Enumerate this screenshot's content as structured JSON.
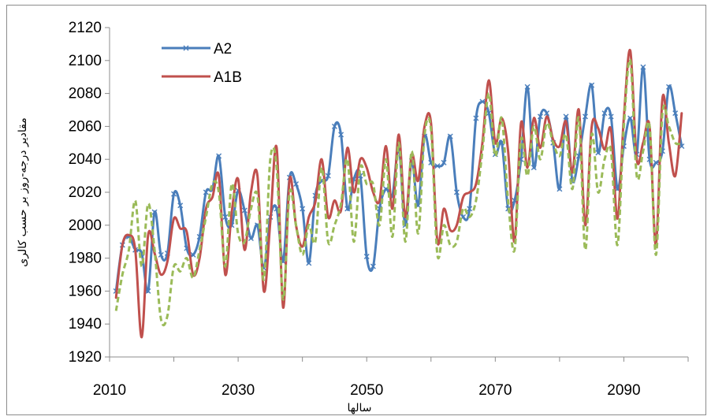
{
  "chart_data": {
    "type": "line",
    "title": "",
    "xlabel": "سالها",
    "ylabel": "مقادیر درجه-روز بر حسب کالری",
    "xlim": [
      2010,
      2100
    ],
    "ylim": [
      1920,
      2120
    ],
    "x_ticks": [
      "2010",
      "2030",
      "2050",
      "2070",
      "2090"
    ],
    "y_ticks": [
      "1920",
      "1940",
      "1960",
      "1980",
      "2000",
      "2020",
      "2040",
      "2060",
      "2080",
      "2100",
      "2120"
    ],
    "legend_position": "top-left",
    "grid": false,
    "x": [
      2011,
      2012,
      2013,
      2014,
      2015,
      2016,
      2017,
      2018,
      2019,
      2020,
      2021,
      2022,
      2023,
      2024,
      2025,
      2026,
      2027,
      2028,
      2029,
      2030,
      2031,
      2032,
      2033,
      2034,
      2035,
      2036,
      2037,
      2038,
      2039,
      2040,
      2041,
      2042,
      2043,
      2044,
      2045,
      2046,
      2047,
      2048,
      2049,
      2050,
      2051,
      2052,
      2053,
      2054,
      2055,
      2056,
      2057,
      2058,
      2059,
      2060,
      2061,
      2062,
      2063,
      2064,
      2065,
      2066,
      2067,
      2068,
      2069,
      2070,
      2071,
      2072,
      2073,
      2074,
      2075,
      2076,
      2077,
      2078,
      2079,
      2080,
      2081,
      2082,
      2083,
      2084,
      2085,
      2086,
      2087,
      2088,
      2089,
      2090,
      2091,
      2092,
      2093,
      2094,
      2095,
      2096,
      2097,
      2098,
      2099
    ],
    "series": [
      {
        "name": "A2",
        "color": "#4a7ebb",
        "style": "solid-x-markers",
        "values": [
          1960,
          1988,
          1993,
          1985,
          1983,
          1960,
          2008,
          1982,
          1983,
          2019,
          2012,
          1986,
          1982,
          1993,
          2020,
          2022,
          2042,
          2005,
          2000,
          2021,
          2009,
          1992,
          2000,
          1974,
          2005,
          2010,
          1978,
          2029,
          2025,
          2010,
          1977,
          2018,
          2027,
          2030,
          2060,
          2055,
          2010,
          2028,
          2030,
          1981,
          1975,
          2010,
          2022,
          2018,
          2047,
          2000,
          2039,
          2012,
          2054,
          2038,
          2036,
          2038,
          2054,
          2020,
          2005,
          2010,
          2065,
          2075,
          2068,
          2043,
          2050,
          2010,
          2015,
          2040,
          2084,
          2035,
          2066,
          2068,
          2050,
          2022,
          2066,
          2027,
          2042,
          2066,
          2085,
          2044,
          2068,
          2066,
          2022,
          2048,
          2065,
          2043,
          2096,
          2040,
          2038,
          2045,
          2084,
          2068,
          2048
        ]
      },
      {
        "name": "A1B",
        "color": "#c0504d",
        "style": "solid",
        "values": [
          1956,
          1988,
          1994,
          1985,
          1932,
          1994,
          1983,
          1970,
          1978,
          2004,
          1998,
          1996,
          1970,
          1980,
          2010,
          2017,
          2030,
          1970,
          2008,
          2028,
          1985,
          2020,
          2030,
          1960,
          2002,
          2047,
          1950,
          2028,
          2000,
          1987,
          2005,
          2014,
          2040,
          2005,
          2015,
          2009,
          2047,
          2020,
          2040,
          2035,
          2020,
          2015,
          2048,
          2010,
          2055,
          2005,
          2043,
          2027,
          2060,
          2062,
          1990,
          2010,
          1997,
          2000,
          2017,
          2020,
          2025,
          2050,
          2088,
          2050,
          2065,
          2045,
          1990,
          2062,
          2035,
          2065,
          2047,
          2066,
          2052,
          2048,
          2063,
          2032,
          2070,
          2000,
          2060,
          2059,
          2046,
          2058,
          2004,
          2065,
          2106,
          2040,
          2050,
          2060,
          1988,
          2077,
          2050,
          2030,
          2068
        ]
      },
      {
        "name": "",
        "color": "#9bbb59",
        "style": "dashed",
        "values": [
          1948,
          1970,
          1985,
          2015,
          1975,
          2013,
          1985,
          1943,
          1945,
          1975,
          1972,
          1980,
          1968,
          1985,
          2005,
          2025,
          2020,
          1975,
          2025,
          1995,
          1990,
          2010,
          2018,
          1967,
          2040,
          2035,
          1955,
          2020,
          2000,
          1982,
          2000,
          1990,
          2035,
          1990,
          2000,
          2013,
          2040,
          1990,
          2035,
          2025,
          2025,
          2000,
          2040,
          1993,
          2050,
          1990,
          2045,
          1995,
          2055,
          2058,
          1982,
          2000,
          1988,
          1990,
          2010,
          2005,
          2015,
          2045,
          2080,
          2042,
          2065,
          2015,
          1985,
          2052,
          2030,
          2060,
          2040,
          2062,
          2050,
          2042,
          2055,
          2022,
          2065,
          1985,
          2055,
          2020,
          2040,
          2045,
          1988,
          2060,
          2100,
          2030,
          2045,
          2060,
          1982,
          2068,
          2060,
          2050,
          2050
        ]
      }
    ]
  }
}
